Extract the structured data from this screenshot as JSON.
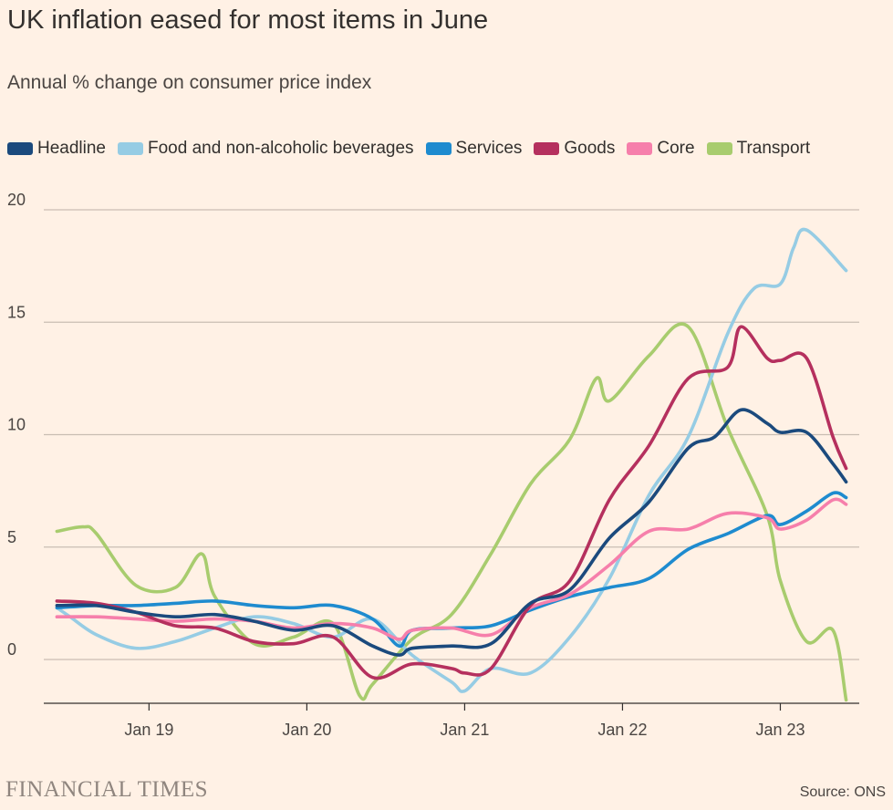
{
  "title": "UK inflation eased for most items in June",
  "subtitle": "Annual % change on consumer price index",
  "brand": "FINANCIAL TIMES",
  "source": "Source: ONS",
  "chart_data": {
    "type": "line",
    "title": "UK inflation eased for most items in June",
    "subtitle": "Annual % change on consumer price index",
    "xlabel": "",
    "ylabel": "",
    "ylim": [
      -2,
      20
    ],
    "yticks": [
      20,
      15,
      10,
      5,
      0
    ],
    "ytick_labels": [
      "20",
      "15",
      "10",
      "5",
      "0"
    ],
    "xticks": [
      "2019-01",
      "2020-01",
      "2021-01",
      "2022-01",
      "2023-01"
    ],
    "xtick_labels": [
      "Jan 19",
      "Jan 20",
      "Jan 21",
      "Jan 22",
      "Jan 23"
    ],
    "xlim": [
      "2018-05",
      "2023-07"
    ],
    "grid": "horizontal",
    "legend_position": "top",
    "series": [
      {
        "name": "Headline",
        "color": "#1B4A7D",
        "x": [
          "2018-06",
          "2018-09",
          "2018-12",
          "2019-03",
          "2019-06",
          "2019-09",
          "2019-12",
          "2020-03",
          "2020-06",
          "2020-08",
          "2020-09",
          "2020-12",
          "2021-03",
          "2021-06",
          "2021-09",
          "2021-12",
          "2022-03",
          "2022-06",
          "2022-08",
          "2022-10",
          "2022-12",
          "2023-01",
          "2023-03",
          "2023-05",
          "2023-06"
        ],
        "values": [
          2.4,
          2.4,
          2.1,
          1.9,
          2.0,
          1.7,
          1.3,
          1.5,
          0.6,
          0.2,
          0.5,
          0.6,
          0.7,
          2.5,
          3.1,
          5.4,
          7.0,
          9.4,
          9.9,
          11.1,
          10.5,
          10.1,
          10.1,
          8.7,
          7.9
        ]
      },
      {
        "name": "Food and non-alcoholic beverages",
        "color": "#96CCE4",
        "x": [
          "2018-06",
          "2018-07",
          "2018-09",
          "2018-12",
          "2019-03",
          "2019-06",
          "2019-09",
          "2019-12",
          "2020-03",
          "2020-06",
          "2020-09",
          "2020-12",
          "2021-01",
          "2021-03",
          "2021-06",
          "2021-09",
          "2021-12",
          "2022-03",
          "2022-06",
          "2022-09",
          "2022-11",
          "2023-01",
          "2023-02",
          "2023-03",
          "2023-06"
        ],
        "values": [
          2.3,
          1.9,
          1.1,
          0.5,
          0.8,
          1.4,
          1.9,
          1.6,
          1.0,
          1.8,
          0.2,
          -1.0,
          -1.4,
          -0.4,
          -0.6,
          1.0,
          3.6,
          7.3,
          9.9,
          14.5,
          16.5,
          16.7,
          18.3,
          19.1,
          17.3
        ]
      },
      {
        "name": "Services",
        "color": "#1E8BCF",
        "x": [
          "2018-06",
          "2018-09",
          "2018-12",
          "2019-03",
          "2019-06",
          "2019-09",
          "2019-12",
          "2020-03",
          "2020-06",
          "2020-08",
          "2020-09",
          "2020-12",
          "2021-03",
          "2021-06",
          "2021-09",
          "2021-12",
          "2022-03",
          "2022-06",
          "2022-09",
          "2022-12",
          "2023-01",
          "2023-03",
          "2023-05",
          "2023-06"
        ],
        "values": [
          2.3,
          2.4,
          2.4,
          2.5,
          2.6,
          2.4,
          2.3,
          2.4,
          1.8,
          0.6,
          1.3,
          1.4,
          1.5,
          2.2,
          2.8,
          3.2,
          3.6,
          4.9,
          5.6,
          6.4,
          6.0,
          6.6,
          7.4,
          7.2
        ]
      },
      {
        "name": "Goods",
        "color": "#B5305E",
        "x": [
          "2018-06",
          "2018-09",
          "2018-12",
          "2019-03",
          "2019-06",
          "2019-09",
          "2019-12",
          "2020-03",
          "2020-06",
          "2020-09",
          "2020-12",
          "2021-01",
          "2021-03",
          "2021-06",
          "2021-09",
          "2021-12",
          "2022-03",
          "2022-06",
          "2022-09",
          "2022-10",
          "2022-12",
          "2023-01",
          "2023-03",
          "2023-05",
          "2023-06"
        ],
        "values": [
          2.6,
          2.5,
          2.1,
          1.5,
          1.4,
          0.8,
          0.7,
          1.0,
          -0.8,
          -0.2,
          -0.4,
          -0.6,
          -0.4,
          2.4,
          3.5,
          7.1,
          9.5,
          12.5,
          13.0,
          14.8,
          13.4,
          13.3,
          13.4,
          9.9,
          8.5
        ]
      },
      {
        "name": "Core",
        "color": "#F67FAB",
        "x": [
          "2018-06",
          "2018-09",
          "2018-12",
          "2019-03",
          "2019-06",
          "2019-09",
          "2019-12",
          "2020-03",
          "2020-06",
          "2020-08",
          "2020-09",
          "2020-12",
          "2021-03",
          "2021-06",
          "2021-09",
          "2021-12",
          "2022-03",
          "2022-06",
          "2022-09",
          "2022-12",
          "2023-01",
          "2023-03",
          "2023-05",
          "2023-06"
        ],
        "values": [
          1.9,
          1.9,
          1.8,
          1.7,
          1.8,
          1.7,
          1.4,
          1.6,
          1.4,
          0.9,
          1.3,
          1.4,
          1.1,
          2.3,
          2.9,
          4.2,
          5.7,
          5.8,
          6.5,
          6.3,
          5.8,
          6.2,
          7.1,
          6.9
        ]
      },
      {
        "name": "Transport",
        "color": "#A8CC6E",
        "x": [
          "2018-06",
          "2018-08",
          "2018-09",
          "2018-12",
          "2019-03",
          "2019-05",
          "2019-06",
          "2019-09",
          "2019-12",
          "2020-03",
          "2020-05",
          "2020-06",
          "2020-09",
          "2020-12",
          "2021-03",
          "2021-06",
          "2021-09",
          "2021-11",
          "2021-12",
          "2022-03",
          "2022-06",
          "2022-09",
          "2022-12",
          "2023-01",
          "2023-03",
          "2023-05",
          "2023-06"
        ],
        "values": [
          5.7,
          5.9,
          5.6,
          3.3,
          3.2,
          4.7,
          2.8,
          0.7,
          1.0,
          1.6,
          -1.6,
          -1.1,
          0.9,
          2.0,
          4.7,
          7.8,
          9.8,
          12.5,
          11.5,
          13.5,
          14.8,
          10.3,
          6.4,
          3.5,
          0.8,
          1.3,
          -1.8
        ]
      }
    ]
  }
}
